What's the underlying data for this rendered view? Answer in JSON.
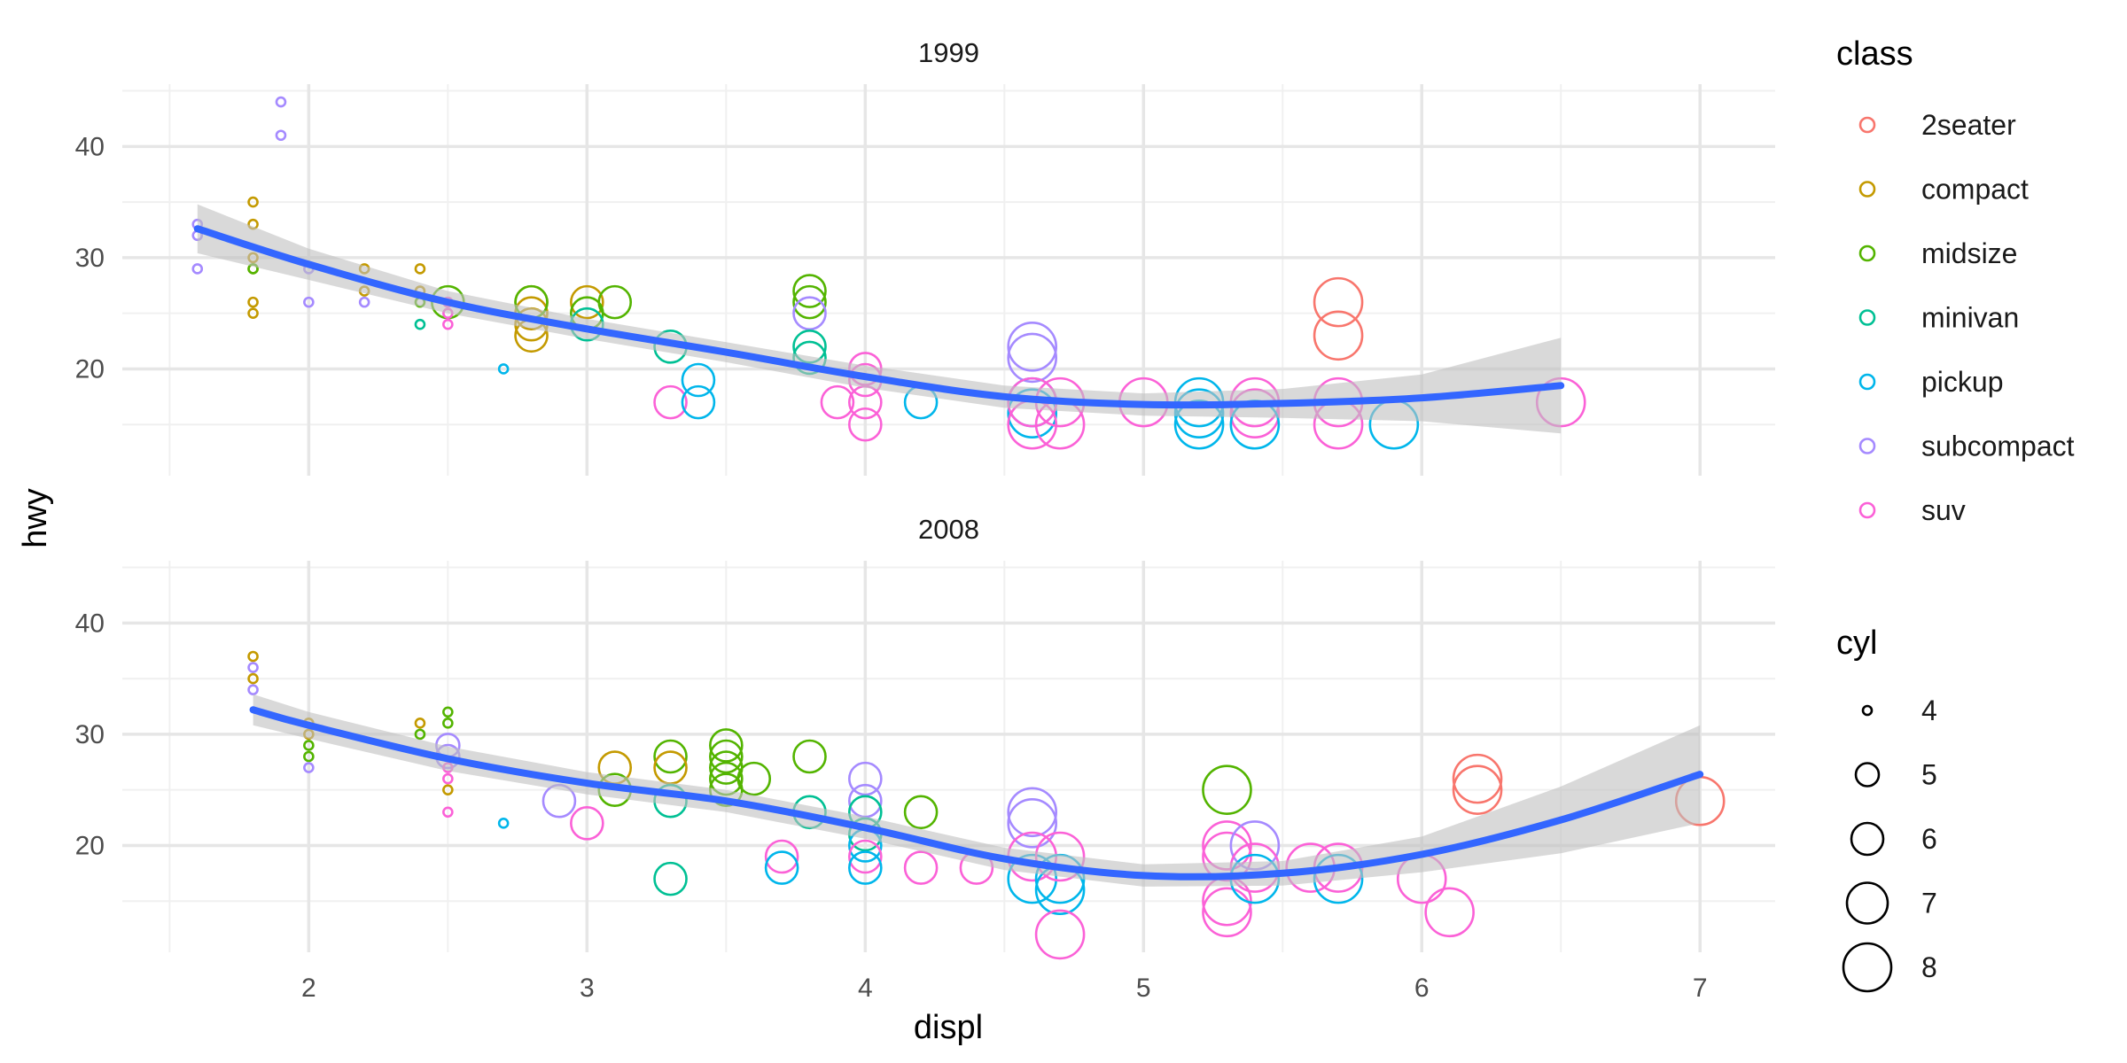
{
  "chart_data": {
    "type": "scatter",
    "x_label": "displ",
    "y_label": "hwy",
    "x_ticks": [
      2,
      3,
      4,
      5,
      6,
      7
    ],
    "y_ticks": [
      20,
      30,
      40
    ],
    "x_range": [
      1.33,
      7.27
    ],
    "y_range": [
      10.4,
      45.6
    ],
    "grid": true,
    "legend_position": "right",
    "colors": {
      "2seater": "#F8766D",
      "compact": "#C49A00",
      "midsize": "#53B400",
      "minivan": "#00C094",
      "pickup": "#00B6EB",
      "subcompact": "#A58AFF",
      "suv": "#FB61D7",
      "smooth": "#3366FF",
      "ribbon": "#BFBFBF"
    },
    "legend_class": {
      "title": "class",
      "items": [
        "2seater",
        "compact",
        "midsize",
        "minivan",
        "pickup",
        "subcompact",
        "suv"
      ]
    },
    "legend_cyl": {
      "title": "cyl",
      "items": [
        "4",
        "5",
        "6",
        "7",
        "8"
      ]
    },
    "panels": [
      {
        "strip": "1999",
        "points": [
          [
            1.6,
            33,
            4,
            "subcompact"
          ],
          [
            1.6,
            32,
            4,
            "subcompact"
          ],
          [
            1.6,
            29,
            4,
            "subcompact"
          ],
          [
            1.8,
            35,
            4,
            "compact"
          ],
          [
            1.8,
            33,
            4,
            "compact"
          ],
          [
            1.8,
            30,
            4,
            "compact"
          ],
          [
            1.8,
            29,
            4,
            "compact"
          ],
          [
            1.8,
            26,
            4,
            "compact"
          ],
          [
            1.8,
            25,
            4,
            "compact"
          ],
          [
            1.8,
            29,
            4,
            "midsize"
          ],
          [
            1.9,
            44,
            4,
            "subcompact"
          ],
          [
            1.9,
            41,
            4,
            "subcompact"
          ],
          [
            2.0,
            29,
            4,
            "subcompact"
          ],
          [
            2.0,
            26,
            4,
            "subcompact"
          ],
          [
            2.2,
            29,
            4,
            "compact"
          ],
          [
            2.2,
            27,
            4,
            "compact"
          ],
          [
            2.2,
            26,
            4,
            "subcompact"
          ],
          [
            2.4,
            29,
            4,
            "compact"
          ],
          [
            2.4,
            27,
            4,
            "compact"
          ],
          [
            2.4,
            26,
            4,
            "midsize"
          ],
          [
            2.4,
            24,
            4,
            "minivan"
          ],
          [
            2.5,
            26,
            6,
            "midsize"
          ],
          [
            2.5,
            26,
            4,
            "suv"
          ],
          [
            2.5,
            25,
            4,
            "suv"
          ],
          [
            2.5,
            24,
            4,
            "suv"
          ],
          [
            2.7,
            20,
            4,
            "pickup"
          ],
          [
            2.8,
            26,
            6,
            "compact"
          ],
          [
            2.8,
            25,
            6,
            "compact"
          ],
          [
            2.8,
            24,
            6,
            "compact"
          ],
          [
            2.8,
            23,
            6,
            "compact"
          ],
          [
            2.8,
            26,
            6,
            "midsize"
          ],
          [
            3.0,
            26,
            6,
            "compact"
          ],
          [
            3.0,
            25,
            6,
            "midsize"
          ],
          [
            3.0,
            24,
            6,
            "minivan"
          ],
          [
            3.1,
            26,
            6,
            "midsize"
          ],
          [
            3.3,
            22,
            6,
            "minivan"
          ],
          [
            3.3,
            17,
            6,
            "suv"
          ],
          [
            3.4,
            19,
            6,
            "pickup"
          ],
          [
            3.4,
            17,
            6,
            "pickup"
          ],
          [
            3.8,
            27,
            6,
            "midsize"
          ],
          [
            3.8,
            26,
            6,
            "midsize"
          ],
          [
            3.8,
            25,
            6,
            "subcompact"
          ],
          [
            3.8,
            22,
            6,
            "minivan"
          ],
          [
            3.8,
            21,
            6,
            "minivan"
          ],
          [
            3.9,
            17,
            6,
            "suv"
          ],
          [
            4.0,
            20,
            6,
            "suv"
          ],
          [
            4.0,
            19,
            6,
            "suv"
          ],
          [
            4.0,
            17,
            6,
            "suv"
          ],
          [
            4.0,
            15,
            6,
            "suv"
          ],
          [
            4.2,
            17,
            6,
            "pickup"
          ],
          [
            4.6,
            22,
            8,
            "subcompact"
          ],
          [
            4.6,
            21,
            8,
            "subcompact"
          ],
          [
            4.6,
            17,
            8,
            "pickup"
          ],
          [
            4.6,
            16,
            8,
            "pickup"
          ],
          [
            4.6,
            17,
            8,
            "suv"
          ],
          [
            4.6,
            15,
            8,
            "suv"
          ],
          [
            4.7,
            17,
            8,
            "suv"
          ],
          [
            4.7,
            15,
            8,
            "suv"
          ],
          [
            5.0,
            17,
            8,
            "suv"
          ],
          [
            5.2,
            17,
            8,
            "pickup"
          ],
          [
            5.2,
            16,
            8,
            "pickup"
          ],
          [
            5.2,
            15,
            8,
            "pickup"
          ],
          [
            5.4,
            17,
            8,
            "suv"
          ],
          [
            5.4,
            16,
            8,
            "suv"
          ],
          [
            5.4,
            15,
            8,
            "pickup"
          ],
          [
            5.7,
            26,
            8,
            "2seater"
          ],
          [
            5.7,
            23,
            8,
            "2seater"
          ],
          [
            5.7,
            17,
            8,
            "suv"
          ],
          [
            5.7,
            15,
            8,
            "suv"
          ],
          [
            5.9,
            15,
            8,
            "pickup"
          ],
          [
            6.5,
            17,
            8,
            "suv"
          ]
        ],
        "smooth": [
          [
            1.6,
            32.6
          ],
          [
            2.0,
            29.4
          ],
          [
            2.5,
            26.0
          ],
          [
            3.0,
            23.6
          ],
          [
            3.5,
            21.5
          ],
          [
            4.0,
            19.3
          ],
          [
            4.5,
            17.5
          ],
          [
            5.0,
            16.8
          ],
          [
            5.5,
            16.9
          ],
          [
            6.0,
            17.4
          ],
          [
            6.5,
            18.5
          ]
        ],
        "ribbon_upper": [
          [
            1.6,
            34.8
          ],
          [
            2.0,
            30.8
          ],
          [
            2.5,
            27.0
          ],
          [
            3.0,
            24.5
          ],
          [
            3.5,
            22.4
          ],
          [
            4.0,
            20.3
          ],
          [
            4.5,
            18.5
          ],
          [
            5.0,
            17.8
          ],
          [
            5.5,
            18.2
          ],
          [
            6.0,
            19.5
          ],
          [
            6.5,
            22.8
          ]
        ],
        "ribbon_lower": [
          [
            1.6,
            30.4
          ],
          [
            2.0,
            28.0
          ],
          [
            2.5,
            25.0
          ],
          [
            3.0,
            22.7
          ],
          [
            3.5,
            20.6
          ],
          [
            4.0,
            18.3
          ],
          [
            4.5,
            16.5
          ],
          [
            5.0,
            15.8
          ],
          [
            5.5,
            15.6
          ],
          [
            6.0,
            15.3
          ],
          [
            6.5,
            14.2
          ]
        ]
      },
      {
        "strip": "2008",
        "points": [
          [
            1.8,
            37,
            4,
            "compact"
          ],
          [
            1.8,
            36,
            4,
            "subcompact"
          ],
          [
            1.8,
            35,
            4,
            "compact"
          ],
          [
            1.8,
            34,
            4,
            "subcompact"
          ],
          [
            2.0,
            31,
            4,
            "compact"
          ],
          [
            2.0,
            30,
            4,
            "compact"
          ],
          [
            2.0,
            29,
            4,
            "midsize"
          ],
          [
            2.0,
            28,
            4,
            "midsize"
          ],
          [
            2.0,
            27,
            4,
            "subcompact"
          ],
          [
            2.4,
            31,
            4,
            "compact"
          ],
          [
            2.4,
            30,
            4,
            "midsize"
          ],
          [
            2.5,
            32,
            4,
            "midsize"
          ],
          [
            2.5,
            31,
            4,
            "midsize"
          ],
          [
            2.5,
            29,
            5,
            "subcompact"
          ],
          [
            2.5,
            28,
            5,
            "subcompact"
          ],
          [
            2.5,
            27,
            4,
            "suv"
          ],
          [
            2.5,
            26,
            4,
            "suv"
          ],
          [
            2.5,
            25,
            4,
            "compact"
          ],
          [
            2.5,
            23,
            4,
            "suv"
          ],
          [
            2.7,
            22,
            4,
            "pickup"
          ],
          [
            2.9,
            24,
            6,
            "subcompact"
          ],
          [
            3.0,
            22,
            6,
            "suv"
          ],
          [
            3.1,
            27,
            6,
            "compact"
          ],
          [
            3.1,
            25,
            6,
            "midsize"
          ],
          [
            3.3,
            28,
            6,
            "midsize"
          ],
          [
            3.3,
            27,
            6,
            "compact"
          ],
          [
            3.3,
            24,
            6,
            "minivan"
          ],
          [
            3.3,
            17,
            6,
            "minivan"
          ],
          [
            3.5,
            29,
            6,
            "midsize"
          ],
          [
            3.5,
            28,
            6,
            "midsize"
          ],
          [
            3.5,
            27,
            6,
            "midsize"
          ],
          [
            3.5,
            26,
            6,
            "midsize"
          ],
          [
            3.5,
            25,
            6,
            "midsize"
          ],
          [
            3.6,
            26,
            6,
            "midsize"
          ],
          [
            3.7,
            19,
            6,
            "suv"
          ],
          [
            3.7,
            18,
            6,
            "pickup"
          ],
          [
            3.8,
            28,
            6,
            "midsize"
          ],
          [
            3.8,
            23,
            6,
            "minivan"
          ],
          [
            4.0,
            26,
            6,
            "subcompact"
          ],
          [
            4.0,
            24,
            6,
            "subcompact"
          ],
          [
            4.0,
            23,
            6,
            "minivan"
          ],
          [
            4.0,
            21,
            6,
            "minivan"
          ],
          [
            4.0,
            20,
            6,
            "pickup"
          ],
          [
            4.0,
            19,
            6,
            "suv"
          ],
          [
            4.0,
            18,
            6,
            "pickup"
          ],
          [
            4.2,
            23,
            6,
            "midsize"
          ],
          [
            4.2,
            18,
            6,
            "suv"
          ],
          [
            4.4,
            18,
            6,
            "suv"
          ],
          [
            4.6,
            23,
            8,
            "subcompact"
          ],
          [
            4.6,
            22,
            8,
            "subcompact"
          ],
          [
            4.6,
            19,
            8,
            "suv"
          ],
          [
            4.6,
            17,
            8,
            "pickup"
          ],
          [
            4.7,
            19,
            8,
            "suv"
          ],
          [
            4.7,
            17,
            8,
            "pickup"
          ],
          [
            4.7,
            16,
            8,
            "pickup"
          ],
          [
            4.7,
            12,
            8,
            "suv"
          ],
          [
            5.3,
            25,
            8,
            "midsize"
          ],
          [
            5.3,
            20,
            8,
            "suv"
          ],
          [
            5.3,
            19,
            8,
            "suv"
          ],
          [
            5.3,
            15,
            8,
            "suv"
          ],
          [
            5.3,
            14,
            8,
            "suv"
          ],
          [
            5.4,
            20,
            8,
            "subcompact"
          ],
          [
            5.4,
            18,
            8,
            "suv"
          ],
          [
            5.4,
            17,
            8,
            "pickup"
          ],
          [
            5.6,
            18,
            8,
            "suv"
          ],
          [
            5.7,
            18,
            8,
            "suv"
          ],
          [
            5.7,
            17,
            8,
            "pickup"
          ],
          [
            6.0,
            17,
            8,
            "suv"
          ],
          [
            6.1,
            14,
            8,
            "suv"
          ],
          [
            6.2,
            26,
            8,
            "2seater"
          ],
          [
            6.2,
            25,
            8,
            "2seater"
          ],
          [
            7.0,
            24,
            8,
            "2seater"
          ]
        ],
        "smooth": [
          [
            1.8,
            32.2
          ],
          [
            2.0,
            30.8
          ],
          [
            2.5,
            27.8
          ],
          [
            3.0,
            25.6
          ],
          [
            3.5,
            24.0
          ],
          [
            4.0,
            21.6
          ],
          [
            4.5,
            18.8
          ],
          [
            5.0,
            17.3
          ],
          [
            5.5,
            17.5
          ],
          [
            6.0,
            19.2
          ],
          [
            6.5,
            22.3
          ],
          [
            7.0,
            26.4
          ]
        ],
        "ribbon_upper": [
          [
            1.8,
            33.6
          ],
          [
            2.0,
            32.0
          ],
          [
            2.5,
            28.9
          ],
          [
            3.0,
            26.6
          ],
          [
            3.5,
            25.0
          ],
          [
            4.0,
            22.6
          ],
          [
            4.5,
            19.8
          ],
          [
            5.0,
            18.3
          ],
          [
            5.5,
            18.6
          ],
          [
            6.0,
            20.8
          ],
          [
            6.5,
            25.3
          ],
          [
            7.0,
            30.8
          ]
        ],
        "ribbon_lower": [
          [
            1.8,
            30.8
          ],
          [
            2.0,
            29.6
          ],
          [
            2.5,
            26.7
          ],
          [
            3.0,
            24.6
          ],
          [
            3.5,
            23.0
          ],
          [
            4.0,
            20.6
          ],
          [
            4.5,
            17.8
          ],
          [
            5.0,
            16.3
          ],
          [
            5.5,
            16.4
          ],
          [
            6.0,
            17.6
          ],
          [
            6.5,
            19.3
          ],
          [
            7.0,
            22.0
          ]
        ]
      }
    ]
  }
}
